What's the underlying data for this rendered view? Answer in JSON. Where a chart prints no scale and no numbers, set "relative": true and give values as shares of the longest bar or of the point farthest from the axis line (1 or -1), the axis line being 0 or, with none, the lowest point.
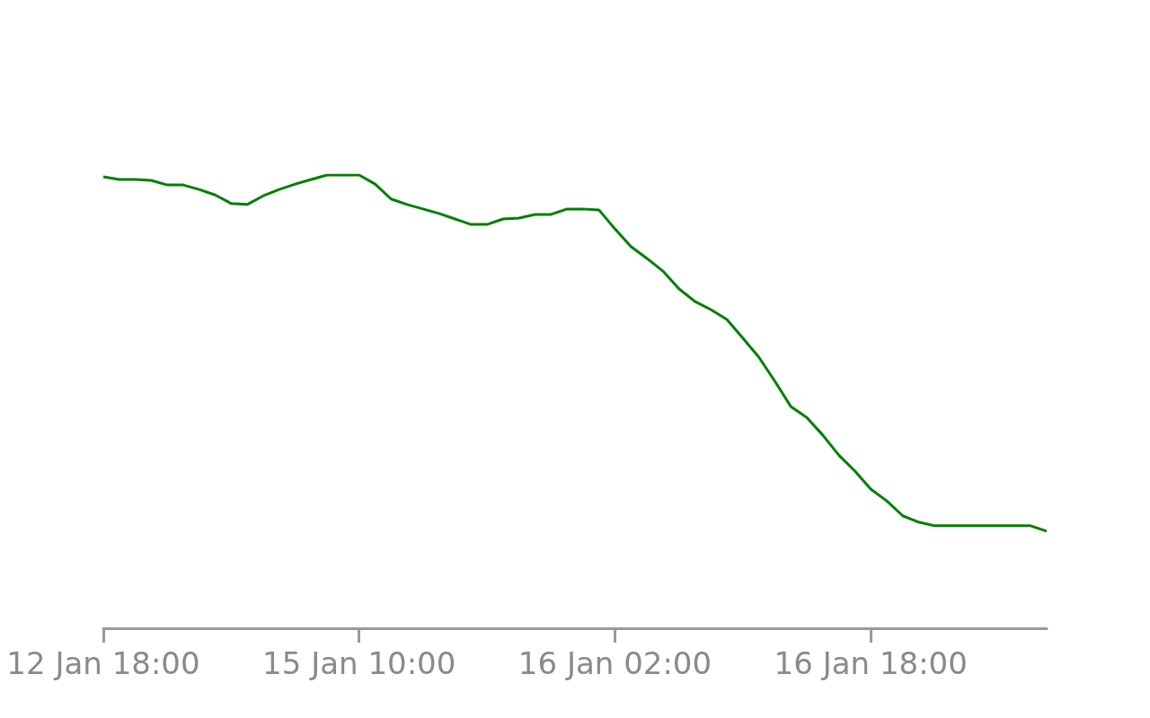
{
  "chart_data": {
    "type": "line",
    "relative": true,
    "color": "#008000",
    "marker": "none",
    "grid": false,
    "categories": [
      "12 Jan 18:00",
      null,
      null,
      null,
      null,
      null,
      null,
      null,
      null,
      null,
      null,
      null,
      null,
      null,
      null,
      null,
      "15 Jan 10:00",
      null,
      null,
      null,
      null,
      null,
      null,
      null,
      null,
      null,
      null,
      null,
      null,
      null,
      null,
      null,
      "16 Jan 02:00",
      null,
      null,
      null,
      null,
      null,
      null,
      null,
      null,
      null,
      null,
      null,
      null,
      null,
      null,
      null,
      "16 Jan 18:00",
      null,
      null,
      null,
      null,
      null,
      null,
      null,
      null,
      null,
      null,
      null
    ],
    "values": [
      0.996,
      0.99,
      0.99,
      0.988,
      0.978,
      0.978,
      0.968,
      0.956,
      0.937,
      0.935,
      0.954,
      0.968,
      0.98,
      0.99,
      1,
      1,
      1,
      0.98,
      0.947,
      0.935,
      0.925,
      0.915,
      0.903,
      0.891,
      0.891,
      0.903,
      0.905,
      0.913,
      0.913,
      0.925,
      0.925,
      0.923,
      0.881,
      0.842,
      0.816,
      0.788,
      0.749,
      0.721,
      0.703,
      0.681,
      0.64,
      0.598,
      0.545,
      0.489,
      0.465,
      0.426,
      0.382,
      0.347,
      0.307,
      0.281,
      0.248,
      0.234,
      0.226,
      0.226,
      0.226,
      0.226,
      0.226,
      0.226,
      0.226,
      0.214
    ]
  }
}
